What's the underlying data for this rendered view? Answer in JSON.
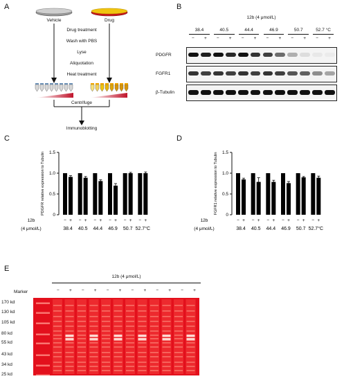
{
  "panelA": {
    "label": "A",
    "vehicle": "Vehicle",
    "drug": "Drug",
    "steps": [
      "Drug treatment",
      "Wash with PBS",
      "Lyse",
      "Aliquotation",
      "Heat treatment"
    ],
    "centrifuge": "Centrifuge",
    "immunoblotting": "Immunoblotting",
    "colors": {
      "vehicle_dish": "#9a9a9a",
      "drug_dish": "#e6b800",
      "gradient_end": "#c0142b"
    }
  },
  "panelB": {
    "label": "B",
    "header": "12b  (4 μmol/L)",
    "temps": [
      "38.4",
      "40.5",
      "44.4",
      "46.9",
      "50.7",
      "52.7 °C"
    ],
    "signs": [
      "−",
      "+",
      "−",
      "+",
      "−",
      "+",
      "−",
      "+",
      "−",
      "+",
      "−",
      "+"
    ],
    "rows": [
      "PDGFR",
      "FGFR1",
      "β-Tubulin"
    ],
    "intensity": {
      "PDGFR": [
        1.0,
        0.95,
        1.0,
        0.9,
        1.0,
        0.85,
        0.8,
        0.6,
        0.3,
        0.1,
        0.05,
        0.02
      ],
      "FGFR1": [
        0.85,
        0.8,
        0.85,
        0.8,
        0.85,
        0.8,
        0.85,
        0.8,
        0.7,
        0.65,
        0.45,
        0.35
      ],
      "beta_tubulin": [
        1,
        1,
        1,
        1,
        1,
        1,
        1,
        1,
        1,
        1,
        1,
        1
      ]
    }
  },
  "chart_data": [
    {
      "panel": "C",
      "type": "bar",
      "ylabel": "PDGFR relative expression to Tubulin",
      "ylim": [
        0,
        1.5
      ],
      "yticks": [
        "0",
        "0.5",
        "1.0",
        "1.5"
      ],
      "categories": [
        "38.4",
        "40.5",
        "44.4",
        "46.9",
        "50.7",
        "52.7°C"
      ],
      "signs": [
        "−",
        "+"
      ],
      "row_label": "12b",
      "row_label2": "(4 μmol/L)",
      "series": [
        {
          "values": [
            1.0,
            1.0,
            1.0,
            1.0,
            1.0,
            1.0
          ],
          "errors": [
            0.0,
            0.0,
            0.0,
            0.0,
            0.0,
            0.0
          ]
        },
        {
          "values": [
            0.91,
            0.89,
            0.81,
            0.7,
            1.0,
            1.0
          ],
          "errors": [
            0.03,
            0.03,
            0.03,
            0.05,
            0.02,
            0.03
          ]
        }
      ]
    },
    {
      "panel": "D",
      "type": "bar",
      "ylabel": "FGFR1 relative expression to Tubulin",
      "ylim": [
        0,
        1.5
      ],
      "yticks": [
        "0",
        "0.5",
        "1.0",
        "1.5"
      ],
      "categories": [
        "38.4",
        "40.5",
        "44.4",
        "46.9",
        "50.7",
        "52.7°C"
      ],
      "signs": [
        "−",
        "+"
      ],
      "row_label": "12b",
      "row_label2": "(4 μmol/L)",
      "series": [
        {
          "values": [
            1.0,
            1.0,
            1.0,
            1.0,
            1.0,
            1.0
          ],
          "errors": [
            0.0,
            0.0,
            0.0,
            0.0,
            0.0,
            0.0
          ]
        },
        {
          "values": [
            0.85,
            0.79,
            0.79,
            0.76,
            0.9,
            0.89
          ],
          "errors": [
            0.03,
            0.1,
            0.04,
            0.04,
            0.02,
            0.04
          ]
        }
      ]
    }
  ],
  "panelE": {
    "label": "E",
    "header": "12b  (4 μmol/L)",
    "marker": "Marker",
    "signs": [
      "−",
      "+",
      "−",
      "+",
      "−",
      "+",
      "−",
      "+",
      "−",
      "+",
      "−",
      "+"
    ],
    "sizes": [
      "170 kd",
      "130 kd",
      "105 kd",
      "80 kd",
      "55 kd",
      "43 kd",
      "34 kd",
      "25 kd"
    ],
    "colors": {
      "gel": "#e3101c",
      "band": "#ff9a8a"
    }
  }
}
